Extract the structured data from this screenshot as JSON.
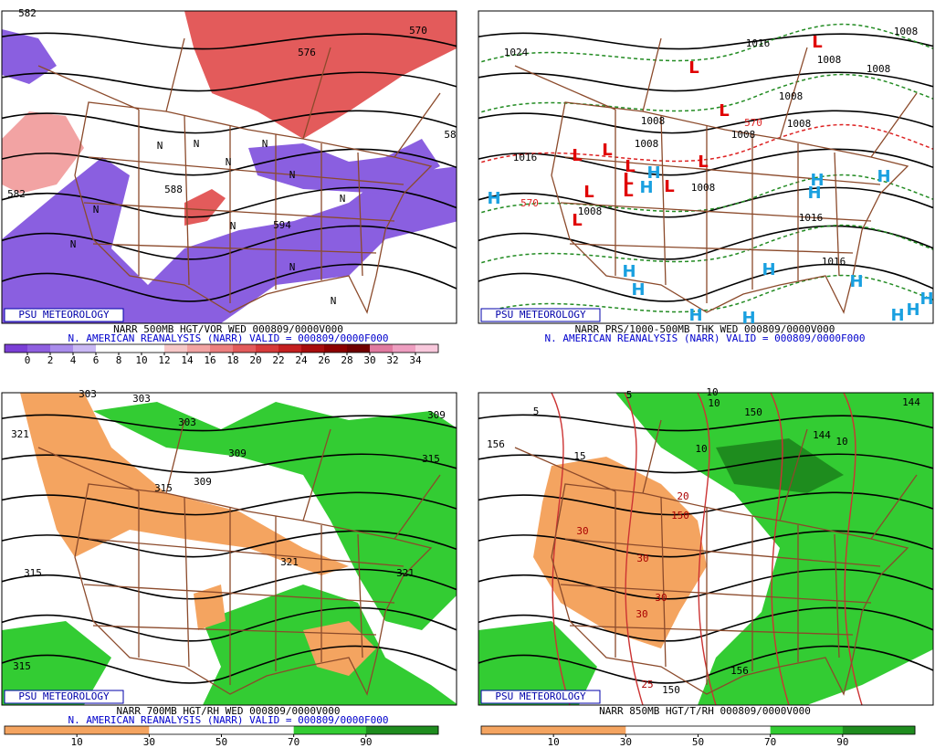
{
  "panels": [
    {
      "source": "PSU METEOROLOGY",
      "header": "NARR 500MB HGT/VOR WED 000809/0000V000",
      "subheader": "N. AMERICAN REANALYSIS (NARR) VALID = 000809/0000F000",
      "colorbar": {
        "labels": [
          0,
          2,
          4,
          6,
          8,
          10,
          12,
          14,
          16,
          18,
          20,
          22,
          24,
          26,
          28,
          30,
          32,
          34
        ],
        "colors": [
          "#7b3fd6",
          "#8f5fe0",
          "#a98cec",
          "#c9b8f4",
          "#ffffff",
          "#ffffff",
          "#ffffff",
          "#f7c8c8",
          "#f2a3a3",
          "#ec7f7f",
          "#e35b5b",
          "#d63a3a",
          "#c42020",
          "#a80d0d",
          "#8c0000",
          "#700000",
          "#e07aa0",
          "#ee9ec0",
          "#f8c8dc"
        ]
      },
      "contour_labels": [
        "582",
        "570",
        "576",
        "58",
        "582",
        "588",
        "594"
      ],
      "markers": [
        "N",
        "N",
        "N",
        "N",
        "N",
        "N",
        "N",
        "N",
        "N",
        "N",
        "N"
      ]
    },
    {
      "source": "PSU METEOROLOGY",
      "header": "NARR PRS/1000-500MB THK WED 000809/0000V000",
      "subheader": "N. AMERICAN REANALYSIS (NARR) VALID = 000809/0000F000",
      "contour_labels": [
        "1024",
        "1016",
        "1008",
        "1008",
        "1008",
        "1008",
        "1008",
        "1008",
        "1008",
        "1008",
        "1008",
        "1016",
        "570",
        "1016",
        "1016",
        "1008",
        "570"
      ],
      "markers": [
        "H",
        "H",
        "H",
        "H",
        "H",
        "H",
        "H",
        "H",
        "H",
        "H",
        "H",
        "H",
        "H",
        "H",
        "H",
        "L",
        "L",
        "L",
        "L",
        "L",
        "L",
        "L",
        "L",
        "L",
        "L",
        "L",
        "L"
      ]
    },
    {
      "source": "PSU METEOROLOGY",
      "header": "NARR 700MB HGT/RH WED 000809/0000V000",
      "subheader": "N. AMERICAN REANALYSIS (NARR) VALID = 000809/0000F000",
      "colorbar": {
        "labels": [
          10,
          30,
          50,
          70,
          90
        ],
        "colors": [
          "#f4a460",
          "#f4a460",
          "#ffffff",
          "#ffffff",
          "#33cc33",
          "#1e8c1e"
        ]
      },
      "contour_labels": [
        "321",
        "303",
        "303",
        "303",
        "309",
        "309",
        "315",
        "309",
        "315",
        "315",
        "321",
        "321",
        "315"
      ],
      "markers": []
    },
    {
      "source": "PSU METEOROLOGY",
      "header": "NARR 850MB HGT/T/RH 000809/0000V000",
      "colorbar": {
        "labels": [
          10,
          30,
          50,
          70,
          90
        ],
        "colors": [
          "#f4a460",
          "#f4a460",
          "#ffffff",
          "#ffffff",
          "#33cc33",
          "#1e8c1e"
        ]
      },
      "contour_labels": [
        "5",
        "5",
        "10",
        "10",
        "10",
        "10",
        "156",
        "15",
        "150",
        "144",
        "20",
        "150",
        "30",
        "30",
        "30",
        "30",
        "25",
        "150",
        "156",
        "144"
      ],
      "markers": []
    }
  ]
}
